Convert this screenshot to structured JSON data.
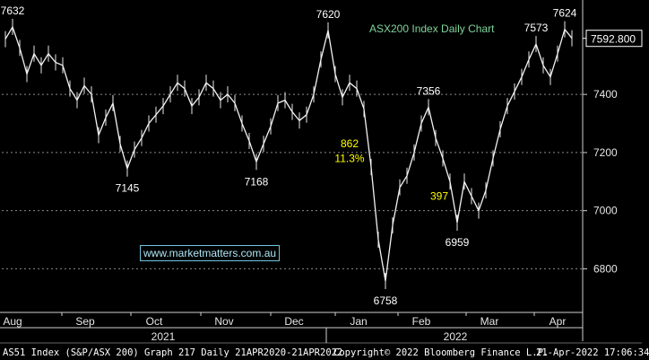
{
  "chart_data": {
    "type": "line",
    "title": "ASX200 Index Daily Chart",
    "last_price": "7592.800",
    "y_ticks": [
      6800,
      7000,
      7200,
      7400
    ],
    "ylim": [
      6650,
      7700
    ],
    "x_ticks": [
      "Aug",
      "Sep",
      "Oct",
      "Nov",
      "Dec",
      "Jan",
      "Feb",
      "Mar",
      "Apr"
    ],
    "years": [
      "2021",
      "2022"
    ],
    "series": [
      {
        "points": [
          {
            "x": 0,
            "y": 7590
          },
          {
            "x": 2,
            "y": 7632
          },
          {
            "x": 4,
            "y": 7560
          },
          {
            "x": 6,
            "y": 7470
          },
          {
            "x": 8,
            "y": 7540
          },
          {
            "x": 10,
            "y": 7500
          },
          {
            "x": 12,
            "y": 7540
          },
          {
            "x": 14,
            "y": 7510
          },
          {
            "x": 16,
            "y": 7500
          },
          {
            "x": 18,
            "y": 7420
          },
          {
            "x": 20,
            "y": 7380
          },
          {
            "x": 22,
            "y": 7430
          },
          {
            "x": 24,
            "y": 7400
          },
          {
            "x": 26,
            "y": 7260
          },
          {
            "x": 28,
            "y": 7320
          },
          {
            "x": 30,
            "y": 7370
          },
          {
            "x": 32,
            "y": 7230
          },
          {
            "x": 34,
            "y": 7145
          },
          {
            "x": 36,
            "y": 7210
          },
          {
            "x": 38,
            "y": 7250
          },
          {
            "x": 40,
            "y": 7300
          },
          {
            "x": 42,
            "y": 7330
          },
          {
            "x": 44,
            "y": 7360
          },
          {
            "x": 46,
            "y": 7400
          },
          {
            "x": 48,
            "y": 7440
          },
          {
            "x": 50,
            "y": 7420
          },
          {
            "x": 52,
            "y": 7360
          },
          {
            "x": 54,
            "y": 7390
          },
          {
            "x": 56,
            "y": 7440
          },
          {
            "x": 58,
            "y": 7420
          },
          {
            "x": 60,
            "y": 7380
          },
          {
            "x": 62,
            "y": 7400
          },
          {
            "x": 64,
            "y": 7370
          },
          {
            "x": 66,
            "y": 7300
          },
          {
            "x": 68,
            "y": 7240
          },
          {
            "x": 70,
            "y": 7168
          },
          {
            "x": 72,
            "y": 7230
          },
          {
            "x": 74,
            "y": 7290
          },
          {
            "x": 76,
            "y": 7370
          },
          {
            "x": 78,
            "y": 7380
          },
          {
            "x": 80,
            "y": 7340
          },
          {
            "x": 82,
            "y": 7310
          },
          {
            "x": 84,
            "y": 7330
          },
          {
            "x": 86,
            "y": 7400
          },
          {
            "x": 88,
            "y": 7520
          },
          {
            "x": 90,
            "y": 7620
          },
          {
            "x": 92,
            "y": 7470
          },
          {
            "x": 94,
            "y": 7390
          },
          {
            "x": 96,
            "y": 7440
          },
          {
            "x": 98,
            "y": 7420
          },
          {
            "x": 100,
            "y": 7350
          },
          {
            "x": 102,
            "y": 7150
          },
          {
            "x": 104,
            "y": 6900
          },
          {
            "x": 106,
            "y": 6758
          },
          {
            "x": 108,
            "y": 6950
          },
          {
            "x": 110,
            "y": 7080
          },
          {
            "x": 112,
            "y": 7120
          },
          {
            "x": 114,
            "y": 7200
          },
          {
            "x": 116,
            "y": 7300
          },
          {
            "x": 118,
            "y": 7356
          },
          {
            "x": 120,
            "y": 7250
          },
          {
            "x": 122,
            "y": 7180
          },
          {
            "x": 124,
            "y": 7100
          },
          {
            "x": 126,
            "y": 6959
          },
          {
            "x": 128,
            "y": 7100
          },
          {
            "x": 130,
            "y": 7050
          },
          {
            "x": 132,
            "y": 7000
          },
          {
            "x": 134,
            "y": 7070
          },
          {
            "x": 136,
            "y": 7180
          },
          {
            "x": 138,
            "y": 7280
          },
          {
            "x": 140,
            "y": 7360
          },
          {
            "x": 142,
            "y": 7410
          },
          {
            "x": 144,
            "y": 7460
          },
          {
            "x": 146,
            "y": 7520
          },
          {
            "x": 148,
            "y": 7573
          },
          {
            "x": 150,
            "y": 7500
          },
          {
            "x": 152,
            "y": 7460
          },
          {
            "x": 154,
            "y": 7540
          },
          {
            "x": 156,
            "y": 7624
          },
          {
            "x": 158,
            "y": 7593
          }
        ]
      }
    ],
    "annotations": [
      {
        "text": "7632",
        "x": 2,
        "y": 7632,
        "pos": "above",
        "color": "#ffffff"
      },
      {
        "text": "7145",
        "x": 34,
        "y": 7145,
        "pos": "below",
        "color": "#ffffff"
      },
      {
        "text": "7168",
        "x": 70,
        "y": 7168,
        "pos": "below",
        "color": "#ffffff"
      },
      {
        "text": "7620",
        "x": 90,
        "y": 7620,
        "pos": "above",
        "color": "#ffffff"
      },
      {
        "text": "6758",
        "x": 106,
        "y": 6758,
        "pos": "below",
        "color": "#ffffff"
      },
      {
        "text": "7356",
        "x": 118,
        "y": 7356,
        "pos": "above",
        "color": "#ffffff"
      },
      {
        "text": "6959",
        "x": 126,
        "y": 6959,
        "pos": "below",
        "color": "#ffffff"
      },
      {
        "text": "7573",
        "x": 148,
        "y": 7573,
        "pos": "above",
        "color": "#ffffff"
      },
      {
        "text": "7624",
        "x": 156,
        "y": 7624,
        "pos": "above",
        "color": "#ffffff"
      },
      {
        "text": "862",
        "x": 96,
        "y": 7230,
        "pos": "at",
        "color": "#ffff00"
      },
      {
        "text": "11.3%",
        "x": 96,
        "y": 7180,
        "pos": "at",
        "color": "#ffff00"
      },
      {
        "text": "397",
        "x": 121,
        "y": 7050,
        "pos": "at",
        "color": "#ffff00"
      }
    ]
  },
  "title_color": "#7fd39a",
  "watermark": "www.marketmatters.com.au",
  "footer": {
    "left": "AS51 Index (S&P/ASX 200) Graph 217  Daily 21APR2020-21APR2022",
    "center": "Copyright© 2022 Bloomberg Finance L.P.",
    "right": "21-Apr-2022 17:06:34"
  }
}
